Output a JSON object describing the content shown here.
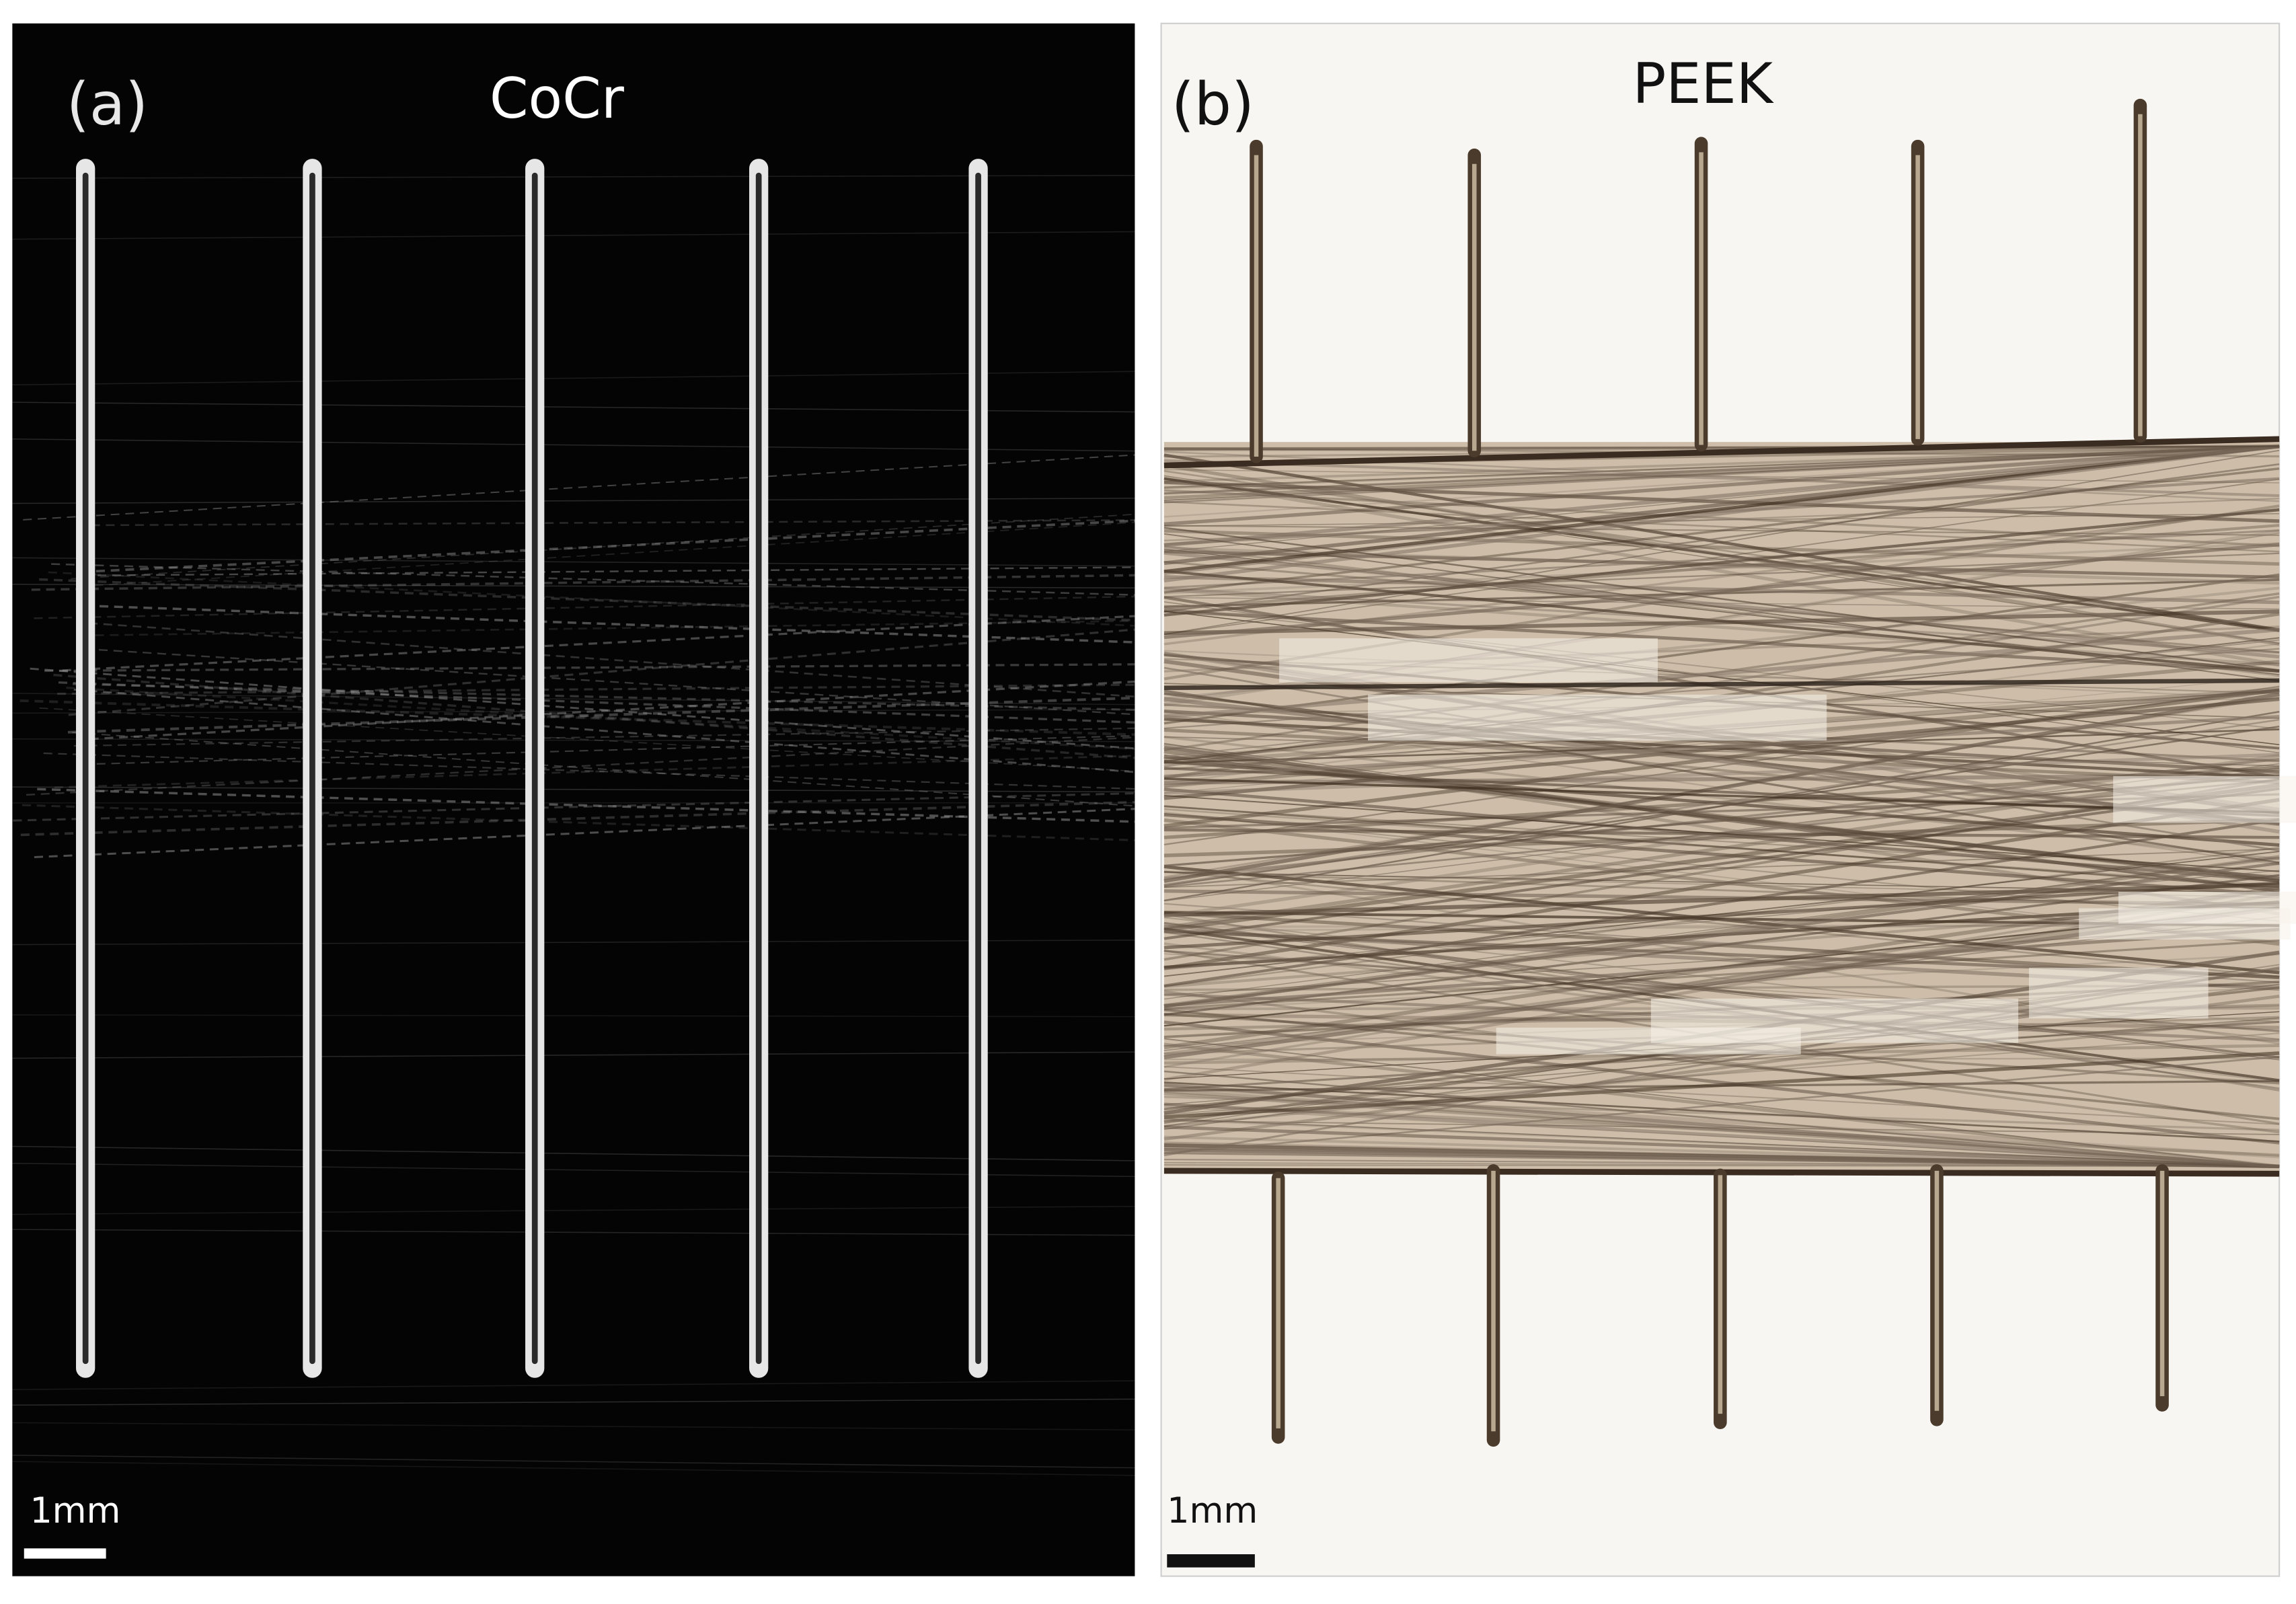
{
  "panels": [
    {
      "label": "(a)",
      "title": "CoCr",
      "scale_bar": "1mm"
    },
    {
      "label": "(b)",
      "title": "PEEK",
      "scale_bar": "1mm"
    }
  ]
}
